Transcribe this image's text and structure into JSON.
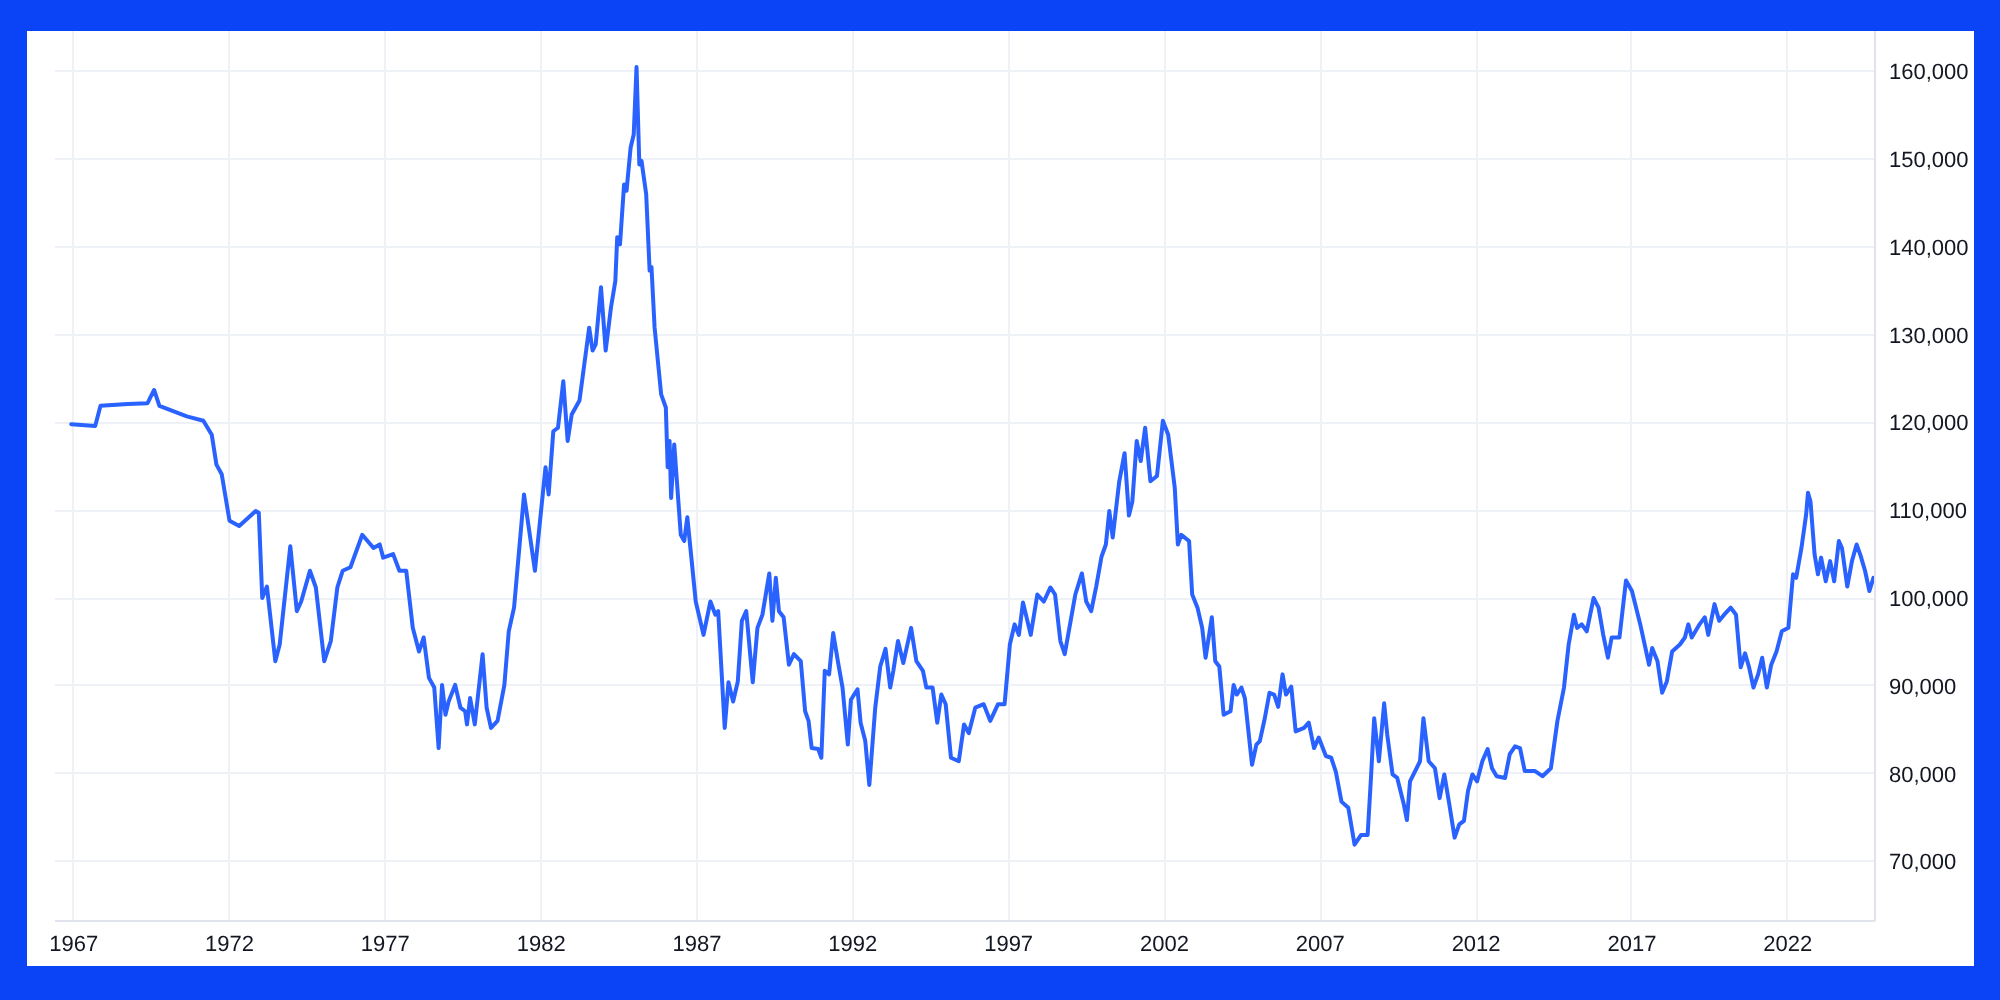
{
  "chart_data": {
    "type": "line",
    "color": "#2962ff",
    "x": [
      1966.92,
      1967.69,
      1967.86,
      1968.74,
      1969.37,
      1969.58,
      1969.75,
      1970.63,
      1971.16,
      1971.43,
      1971.58,
      1971.75,
      1972.0,
      1972.31,
      1972.84,
      1972.94,
      1973.05,
      1973.2,
      1973.47,
      1973.61,
      1973.95,
      1974.16,
      1974.3,
      1974.58,
      1974.77,
      1975.04,
      1975.25,
      1975.46,
      1975.63,
      1975.88,
      1976.26,
      1976.62,
      1976.82,
      1976.93,
      1977.25,
      1977.45,
      1977.67,
      1977.88,
      1978.08,
      1978.23,
      1978.4,
      1978.57,
      1978.71,
      1978.82,
      1978.93,
      1979.03,
      1979.24,
      1979.41,
      1979.56,
      1979.62,
      1979.72,
      1979.87,
      1980.12,
      1980.25,
      1980.39,
      1980.6,
      1980.82,
      1980.96,
      1981.13,
      1981.45,
      1981.8,
      1982.14,
      1982.24,
      1982.39,
      1982.54,
      1982.71,
      1982.85,
      1982.98,
      1983.23,
      1983.54,
      1983.65,
      1983.75,
      1983.92,
      1984.07,
      1984.24,
      1984.38,
      1984.44,
      1984.53,
      1984.66,
      1984.74,
      1984.87,
      1984.97,
      1985.06,
      1985.15,
      1985.22,
      1985.37,
      1985.48,
      1985.54,
      1985.64,
      1985.85,
      1986.0,
      1986.06,
      1986.12,
      1986.17,
      1986.27,
      1986.48,
      1986.59,
      1986.69,
      1986.96,
      1987.21,
      1987.43,
      1987.59,
      1987.68,
      1987.89,
      1988.01,
      1988.16,
      1988.31,
      1988.44,
      1988.58,
      1988.79,
      1988.94,
      1989.1,
      1989.32,
      1989.42,
      1989.53,
      1989.63,
      1989.78,
      1989.95,
      1990.11,
      1990.33,
      1990.47,
      1990.58,
      1990.68,
      1990.89,
      1990.99,
      1991.1,
      1991.24,
      1991.37,
      1991.52,
      1991.67,
      1991.84,
      1991.94,
      1992.15,
      1992.25,
      1992.4,
      1992.53,
      1992.72,
      1992.88,
      1993.05,
      1993.2,
      1993.3,
      1993.45,
      1993.62,
      1993.87,
      1994.04,
      1994.25,
      1994.36,
      1994.56,
      1994.71,
      1994.84,
      1994.98,
      1995.15,
      1995.4,
      1995.57,
      1995.72,
      1995.93,
      1996.2,
      1996.41,
      1996.66,
      1996.87,
      1997.04,
      1997.19,
      1997.33,
      1997.46,
      1997.71,
      1997.92,
      1998.13,
      1998.34,
      1998.49,
      1998.66,
      1998.8,
      1998.93,
      1999.14,
      1999.35,
      1999.49,
      1999.65,
      1999.81,
      1999.98,
      2000.12,
      2000.23,
      2000.34,
      2000.55,
      2000.72,
      2000.86,
      2000.97,
      2001.11,
      2001.24,
      2001.38,
      2001.55,
      2001.76,
      2001.95,
      2002.12,
      2002.33,
      2002.43,
      2002.54,
      2002.79,
      2002.89,
      2003.06,
      2003.21,
      2003.32,
      2003.52,
      2003.63,
      2003.76,
      2003.9,
      2004.12,
      2004.22,
      2004.32,
      2004.47,
      2004.58,
      2004.81,
      2004.95,
      2005.06,
      2005.22,
      2005.37,
      2005.52,
      2005.65,
      2005.79,
      2005.9,
      2006.07,
      2006.21,
      2006.48,
      2006.63,
      2006.8,
      2006.95,
      2007.18,
      2007.35,
      2007.5,
      2007.68,
      2007.9,
      2008.1,
      2008.31,
      2008.52,
      2008.62,
      2008.73,
      2008.88,
      2009.05,
      2009.15,
      2009.32,
      2009.47,
      2009.68,
      2009.78,
      2009.88,
      2010.2,
      2010.31,
      2010.48,
      2010.68,
      2010.83,
      2010.98,
      2011.14,
      2011.31,
      2011.46,
      2011.61,
      2011.74,
      2011.88,
      2012.03,
      2012.2,
      2012.37,
      2012.51,
      2012.66,
      2012.93,
      2013.08,
      2013.25,
      2013.41,
      2013.56,
      2013.88,
      2014.13,
      2014.4,
      2014.61,
      2014.82,
      2014.97,
      2015.14,
      2015.24,
      2015.39,
      2015.55,
      2015.77,
      2015.93,
      2016.08,
      2016.23,
      2016.35,
      2016.6,
      2016.81,
      2017.0,
      2017.28,
      2017.55,
      2017.65,
      2017.82,
      2017.97,
      2018.12,
      2018.29,
      2018.54,
      2018.7,
      2018.81,
      2018.92,
      2019.17,
      2019.34,
      2019.45,
      2019.65,
      2019.8,
      2019.96,
      2020.17,
      2020.34,
      2020.49,
      2020.63,
      2020.76,
      2020.9,
      2021.05,
      2021.18,
      2021.33,
      2021.47,
      2021.64,
      2021.81,
      2022.02,
      2022.17,
      2022.27,
      2022.44,
      2022.59,
      2022.65,
      2022.73,
      2022.86,
      2022.97,
      2023.07,
      2023.22,
      2023.36,
      2023.49,
      2023.64,
      2023.74,
      2023.91,
      2024.06,
      2024.21,
      2024.34,
      2024.48,
      2024.62,
      2024.75
    ],
    "values": [
      119800,
      119600,
      121900,
      122100,
      122200,
      123700,
      121900,
      120700,
      120200,
      118600,
      115200,
      114100,
      108800,
      108200,
      109900,
      109700,
      100000,
      101300,
      92800,
      94700,
      105900,
      98500,
      99600,
      103100,
      101200,
      92800,
      95100,
      101200,
      103100,
      103500,
      107200,
      105700,
      106100,
      104600,
      105000,
      103100,
      103100,
      96600,
      93900,
      95500,
      90900,
      89800,
      82900,
      90100,
      86700,
      88200,
      90100,
      87500,
      87100,
      85600,
      88600,
      85600,
      93600,
      87500,
      85200,
      86000,
      90100,
      96200,
      98900,
      111800,
      103100,
      114900,
      111800,
      119000,
      119400,
      124700,
      117900,
      120900,
      122500,
      130800,
      128200,
      128900,
      135400,
      128200,
      133100,
      136100,
      141100,
      140300,
      147100,
      146400,
      151300,
      152800,
      160500,
      149400,
      149800,
      146000,
      137300,
      137700,
      130800,
      123200,
      121700,
      114900,
      117900,
      111400,
      117500,
      107200,
      106500,
      109200,
      99600,
      95800,
      99600,
      98100,
      98500,
      85200,
      90400,
      88200,
      90500,
      97400,
      98500,
      90400,
      96600,
      98100,
      102800,
      97400,
      102300,
      98500,
      97800,
      92400,
      93600,
      92800,
      87100,
      86000,
      82900,
      82800,
      81800,
      91700,
      91300,
      96000,
      92800,
      89800,
      83300,
      88400,
      89600,
      85800,
      83700,
      78700,
      87500,
      92200,
      94200,
      89800,
      91700,
      95100,
      92600,
      96600,
      92800,
      91700,
      89800,
      89800,
      85800,
      89000,
      87900,
      81800,
      81400,
      85600,
      84600,
      87500,
      87900,
      86000,
      87900,
      87900,
      94700,
      97000,
      95800,
      99500,
      95800,
      100400,
      99600,
      101200,
      100400,
      95100,
      93600,
      96200,
      100400,
      102800,
      99600,
      98500,
      101300,
      104700,
      106100,
      109900,
      106900,
      113300,
      116500,
      109400,
      111000,
      117900,
      115600,
      119400,
      113300,
      113900,
      120200,
      118600,
      112600,
      106100,
      107200,
      106500,
      100400,
      98900,
      96600,
      93200,
      97800,
      92800,
      92200,
      86700,
      87100,
      90100,
      89000,
      89800,
      88600,
      81000,
      83300,
      83700,
      86300,
      89200,
      89000,
      87600,
      91300,
      89000,
      89900,
      84800,
      85200,
      85800,
      82900,
      84100,
      82000,
      81800,
      80200,
      76800,
      76100,
      71900,
      73000,
      73000,
      79100,
      86300,
      81400,
      88000,
      84400,
      79900,
      79500,
      76500,
      74700,
      79100,
      81400,
      86300,
      81400,
      80600,
      77200,
      79900,
      76500,
      72700,
      74200,
      74600,
      78000,
      79900,
      79100,
      81400,
      82800,
      80600,
      79700,
      79500,
      82200,
      83100,
      82900,
      80300,
      80300,
      79700,
      80600,
      86000,
      89800,
      94700,
      98100,
      96600,
      97000,
      96200,
      100000,
      98900,
      95800,
      93200,
      95500,
      95500,
      102000,
      100800,
      96800,
      92400,
      94300,
      92800,
      89200,
      90500,
      93900,
      94700,
      95500,
      97000,
      95500,
      97000,
      97800,
      95800,
      99300,
      97400,
      98100,
      98900,
      98100,
      92100,
      93700,
      92100,
      89800,
      91300,
      93200,
      89800,
      92400,
      93900,
      96200,
      96600,
      102700,
      102300,
      105700,
      109500,
      112000,
      111000,
      105000,
      102700,
      104600,
      101900,
      104200,
      101900,
      106500,
      105700,
      101300,
      104200,
      106100,
      104800,
      103100,
      100800,
      102300
    ],
    "xlim": [
      1966.4,
      2024.8
    ],
    "ylim": [
      63200,
      164600
    ],
    "xticks": [
      1967,
      1972,
      1977,
      1982,
      1987,
      1992,
      1997,
      2002,
      2007,
      2012,
      2017,
      2022
    ],
    "yticks": [
      {
        "value": 70000,
        "label": "70,000"
      },
      {
        "value": 80000,
        "label": "80,000"
      },
      {
        "value": 90000,
        "label": "90,000"
      },
      {
        "value": 100000,
        "label": "100,000"
      },
      {
        "value": 110000,
        "label": "110,000"
      },
      {
        "value": 120000,
        "label": "120,000"
      },
      {
        "value": 130000,
        "label": "130,000"
      },
      {
        "value": 140000,
        "label": "140,000"
      },
      {
        "value": 150000,
        "label": "150,000"
      },
      {
        "value": 160000,
        "label": "160,000"
      }
    ],
    "grid": true
  }
}
